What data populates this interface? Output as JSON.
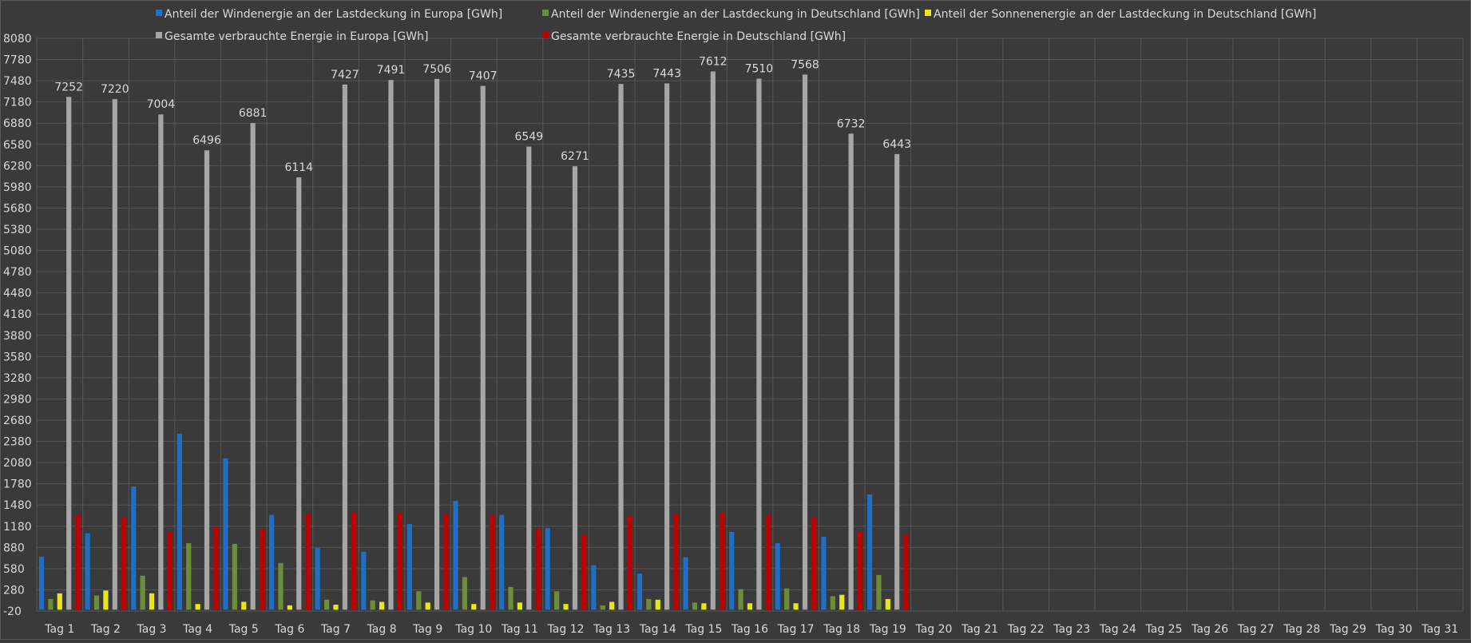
{
  "chart_data": {
    "type": "bar",
    "categories": [
      "Tag 1",
      "Tag 2",
      "Tag 3",
      "Tag 4",
      "Tag 5",
      "Tag 6",
      "Tag 7",
      "Tag 8",
      "Tag 9",
      "Tag 10",
      "Tag 11",
      "Tag 12",
      "Tag 13",
      "Tag 14",
      "Tag 15",
      "Tag 16",
      "Tag 17",
      "Tag 18",
      "Tag 19",
      "Tag 20",
      "Tag 21",
      "Tag 22",
      "Tag 23",
      "Tag 24",
      "Tag 25",
      "Tag 26",
      "Tag 27",
      "Tag 28",
      "Tag 29",
      "Tag 30",
      "Tag 31"
    ],
    "series": [
      {
        "name": "Anteil der Windenergie an der Lastdeckung in Europa [GWh]",
        "color": "#1f6fc5",
        "values": [
          750,
          1080,
          1740,
          2490,
          2140,
          1340,
          870,
          820,
          1210,
          1540,
          1340,
          1150,
          630,
          510,
          740,
          1100,
          940,
          1030,
          1630,
          null,
          null,
          null,
          null,
          null,
          null,
          null,
          null,
          null,
          null,
          null,
          null
        ]
      },
      {
        "name": "Anteil der Windenergie an der Lastdeckung in Deutschland [GWh]",
        "color": "#6b8e3a",
        "values": [
          150,
          200,
          480,
          940,
          930,
          660,
          140,
          130,
          260,
          460,
          320,
          260,
          60,
          150,
          100,
          290,
          300,
          190,
          490,
          null,
          null,
          null,
          null,
          null,
          null,
          null,
          null,
          null,
          null,
          null,
          null
        ]
      },
      {
        "name": "Anteil der Sonnenenergie an der Lastdeckung in Deutschland [GWh]",
        "color": "#e6e619",
        "values": [
          230,
          270,
          230,
          80,
          110,
          60,
          70,
          110,
          100,
          80,
          100,
          80,
          110,
          140,
          90,
          90,
          90,
          210,
          150,
          null,
          null,
          null,
          null,
          null,
          null,
          null,
          null,
          null,
          null,
          null,
          null
        ]
      },
      {
        "name": "Gesamte verbrauchte Energie in Europa [GWh]",
        "color": "#a6a6a6",
        "values": [
          7252,
          7220,
          7004,
          6496,
          6881,
          6114,
          7427,
          7491,
          7506,
          7407,
          6549,
          6271,
          7435,
          7443,
          7612,
          7510,
          7568,
          6732,
          6443,
          null,
          null,
          null,
          null,
          null,
          null,
          null,
          null,
          null,
          null,
          null,
          null
        ]
      },
      {
        "name": "Gesamte verbrauchte Energie in Deutschland [GWh]",
        "color": "#c00000",
        "values": [
          1340,
          1300,
          1100,
          1170,
          1140,
          1360,
          1380,
          1370,
          1360,
          1340,
          1150,
          1060,
          1330,
          1350,
          1380,
          1340,
          1300,
          1110,
          1060,
          null,
          null,
          null,
          null,
          null,
          null,
          null,
          null,
          null,
          null,
          null,
          null
        ]
      }
    ],
    "data_labels_series": "Gesamte verbrauchte Energie in Europa [GWh]",
    "ylim": [
      -20,
      8080
    ],
    "yticks": [
      -20,
      280,
      580,
      880,
      1180,
      1480,
      1780,
      2080,
      2380,
      2680,
      2980,
      3280,
      3580,
      3880,
      4180,
      4480,
      4780,
      5080,
      5380,
      5680,
      5980,
      6280,
      6580,
      6880,
      7180,
      7480,
      7780,
      8080
    ],
    "grid": true,
    "legend_position": "top",
    "background": "#3a3a3a",
    "gridline_color": "#555555",
    "text_color": "#d9d9d9"
  }
}
